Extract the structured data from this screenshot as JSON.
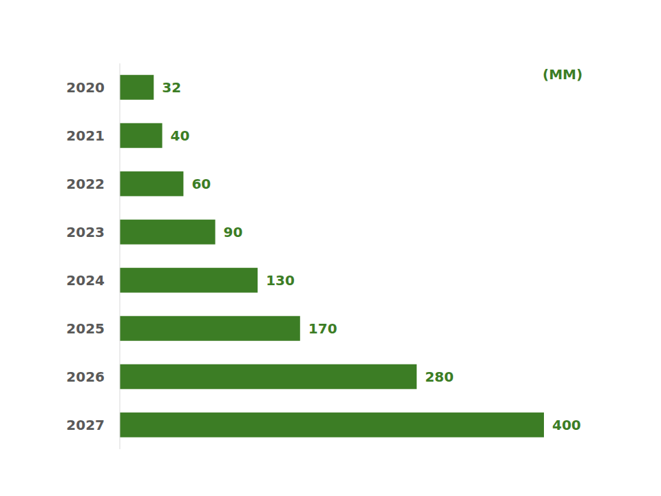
{
  "chart_data": {
    "type": "bar",
    "orientation": "horizontal",
    "annotation": "(MM)",
    "categories": [
      "2020",
      "2021",
      "2022",
      "2023",
      "2024",
      "2025",
      "2026",
      "2027"
    ],
    "values": [
      32,
      40,
      60,
      90,
      130,
      170,
      280,
      400
    ],
    "color": "#3c7d25",
    "xlim": [
      0,
      400
    ],
    "data_labels": true,
    "tick_labels": "y",
    "grid": false
  }
}
